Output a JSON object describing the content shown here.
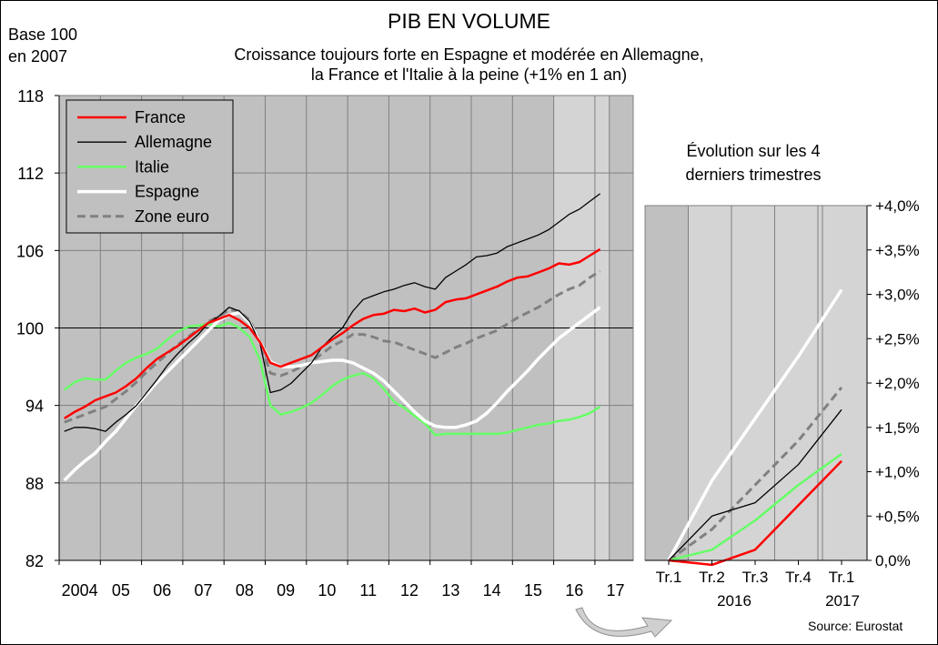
{
  "title": "PIB EN VOLUME",
  "subtitle_line1": "Croissance toujours forte en Espagne et modérée en Allemagne,",
  "subtitle_line2": "la France et l'Italie à la peine (+1% en 1 an)",
  "base_label_line1": "Base 100",
  "base_label_line2": "en 2007",
  "inset_title_line1": "Évolution sur les 4",
  "inset_title_line2": "derniers trimestres",
  "source": "Source: Eurostat",
  "colors": {
    "France": "#ff0000",
    "Allemagne": "#000000",
    "Italie": "#66ff66",
    "Espagne": "#ffffff",
    "Zone euro": "#808080",
    "plot_bg": "#c0c0c0",
    "plot_bg_light": "#d4d4d4"
  },
  "chart_data": [
    {
      "type": "line",
      "ylim": [
        82,
        118
      ],
      "yticks": [
        "82",
        "88",
        "94",
        "100",
        "106",
        "112",
        "118"
      ],
      "xtick_labels": [
        "2004",
        "05",
        "06",
        "07",
        "08",
        "09",
        "10",
        "11",
        "12",
        "13",
        "14",
        "15",
        "16",
        "17"
      ],
      "legend_position": "top-left",
      "x": [
        "2004 T1",
        "2004 T2",
        "2004 T3",
        "2004 T4",
        "2005 T1",
        "2005 T2",
        "2005 T3",
        "2005 T4",
        "2006 T1",
        "2006 T2",
        "2006 T3",
        "2006 T4",
        "2007 T1",
        "2007 T2",
        "2007 T3",
        "2007 T4",
        "2008 T1",
        "2008 T2",
        "2008 T3",
        "2008 T4",
        "2009 T1",
        "2009 T2",
        "2009 T3",
        "2009 T4",
        "2010 T1",
        "2010 T2",
        "2010 T3",
        "2010 T4",
        "2011 T1",
        "2011 T2",
        "2011 T3",
        "2011 T4",
        "2012 T1",
        "2012 T2",
        "2012 T3",
        "2012 T4",
        "2013 T1",
        "2013 T2",
        "2013 T3",
        "2013 T4",
        "2014 T1",
        "2014 T2",
        "2014 T3",
        "2014 T4",
        "2015 T1",
        "2015 T2",
        "2015 T3",
        "2015 T4",
        "2016 T1",
        "2016 T2",
        "2016 T3",
        "2016 T4",
        "2017 T1"
      ],
      "series": [
        {
          "name": "France",
          "values": [
            93.0,
            93.5,
            93.9,
            94.4,
            94.7,
            95.0,
            95.5,
            96.1,
            96.9,
            97.6,
            98.1,
            98.6,
            99.2,
            99.8,
            100.4,
            100.7,
            101.0,
            100.6,
            100.0,
            98.9,
            97.3,
            97.0,
            97.3,
            97.6,
            97.9,
            98.5,
            99.1,
            99.6,
            100.2,
            100.7,
            101.0,
            101.1,
            101.4,
            101.3,
            101.5,
            101.2,
            101.4,
            102.0,
            102.2,
            102.3,
            102.6,
            102.9,
            103.2,
            103.6,
            103.9,
            104.0,
            104.3,
            104.6,
            105.0,
            104.9,
            105.1,
            105.6,
            106.1
          ]
        },
        {
          "name": "Allemagne",
          "values": [
            92.0,
            92.3,
            92.3,
            92.2,
            92.0,
            92.7,
            93.3,
            94.0,
            95.0,
            96.0,
            97.1,
            98.0,
            98.8,
            99.5,
            100.4,
            100.9,
            101.6,
            101.3,
            100.5,
            98.8,
            95.0,
            95.2,
            95.7,
            96.5,
            97.3,
            98.5,
            99.3,
            100.0,
            101.3,
            102.2,
            102.5,
            102.8,
            103.0,
            103.3,
            103.5,
            103.2,
            103.0,
            103.9,
            104.4,
            104.9,
            105.5,
            105.6,
            105.8,
            106.3,
            106.6,
            106.9,
            107.2,
            107.6,
            108.2,
            108.8,
            109.2,
            109.8,
            110.4
          ]
        },
        {
          "name": "Italie",
          "values": [
            95.2,
            95.8,
            96.1,
            96.0,
            96.0,
            96.7,
            97.3,
            97.7,
            98.0,
            98.4,
            99.1,
            99.7,
            100.1,
            100.2,
            100.3,
            100.1,
            100.4,
            100.0,
            99.3,
            97.5,
            94.0,
            93.3,
            93.5,
            93.8,
            94.2,
            94.8,
            95.5,
            96.0,
            96.3,
            96.5,
            96.1,
            95.3,
            94.3,
            93.8,
            93.2,
            92.6,
            91.7,
            91.8,
            91.8,
            91.8,
            91.8,
            91.8,
            91.8,
            91.9,
            92.1,
            92.3,
            92.5,
            92.6,
            92.8,
            92.9,
            93.1,
            93.4,
            93.9
          ]
        },
        {
          "name": "Espagne",
          "values": [
            88.2,
            89.0,
            89.7,
            90.3,
            91.2,
            92.0,
            93.0,
            94.0,
            94.9,
            95.8,
            96.6,
            97.4,
            98.2,
            99.0,
            99.8,
            100.6,
            101.0,
            101.2,
            100.4,
            98.9,
            97.4,
            97.0,
            97.0,
            97.1,
            97.3,
            97.4,
            97.5,
            97.5,
            97.3,
            96.9,
            96.5,
            95.9,
            95.1,
            94.3,
            93.5,
            92.8,
            92.4,
            92.3,
            92.3,
            92.5,
            92.8,
            93.4,
            94.2,
            95.1,
            95.9,
            96.7,
            97.6,
            98.4,
            99.2,
            99.8,
            100.4,
            101.0,
            101.6
          ]
        },
        {
          "name": "Zone euro",
          "values": [
            92.7,
            93.0,
            93.3,
            93.6,
            93.9,
            94.5,
            95.1,
            95.8,
            96.6,
            97.3,
            98.0,
            98.7,
            99.3,
            99.9,
            100.5,
            100.9,
            101.4,
            101.3,
            100.6,
            99.0,
            96.5,
            96.3,
            96.6,
            97.0,
            97.4,
            98.0,
            98.6,
            99.0,
            99.5,
            99.5,
            99.3,
            99.0,
            98.9,
            98.6,
            98.3,
            98.0,
            97.7,
            98.1,
            98.5,
            98.8,
            99.2,
            99.5,
            99.8,
            100.3,
            100.8,
            101.2,
            101.6,
            102.1,
            102.6,
            103.0,
            103.3,
            103.9,
            104.4
          ]
        }
      ]
    },
    {
      "type": "line",
      "title": "Évolution sur les 4 derniers trimestres",
      "ylim": [
        0,
        4.0
      ],
      "yticks": [
        "0,0%",
        "+0,5%",
        "+1,0%",
        "+1,5%",
        "+2,0%",
        "+2,5%",
        "+3,0%",
        "+3,5%",
        "+4,0%"
      ],
      "categories": [
        "Tr.1",
        "Tr.2",
        "Tr.3",
        "Tr.4",
        "Tr.1"
      ],
      "year_labels": [
        "2016",
        "2017"
      ],
      "series": [
        {
          "name": "France",
          "values": [
            0.0,
            -0.05,
            0.12,
            0.62,
            1.12
          ]
        },
        {
          "name": "Allemagne",
          "values": [
            0.0,
            0.5,
            0.65,
            1.08,
            1.7
          ]
        },
        {
          "name": "Italie",
          "values": [
            0.0,
            0.12,
            0.45,
            0.85,
            1.2
          ]
        },
        {
          "name": "Espagne",
          "values": [
            0.0,
            0.9,
            1.6,
            2.3,
            3.05
          ]
        },
        {
          "name": "Zone euro",
          "values": [
            0.0,
            0.35,
            0.85,
            1.35,
            1.95
          ]
        }
      ]
    }
  ]
}
